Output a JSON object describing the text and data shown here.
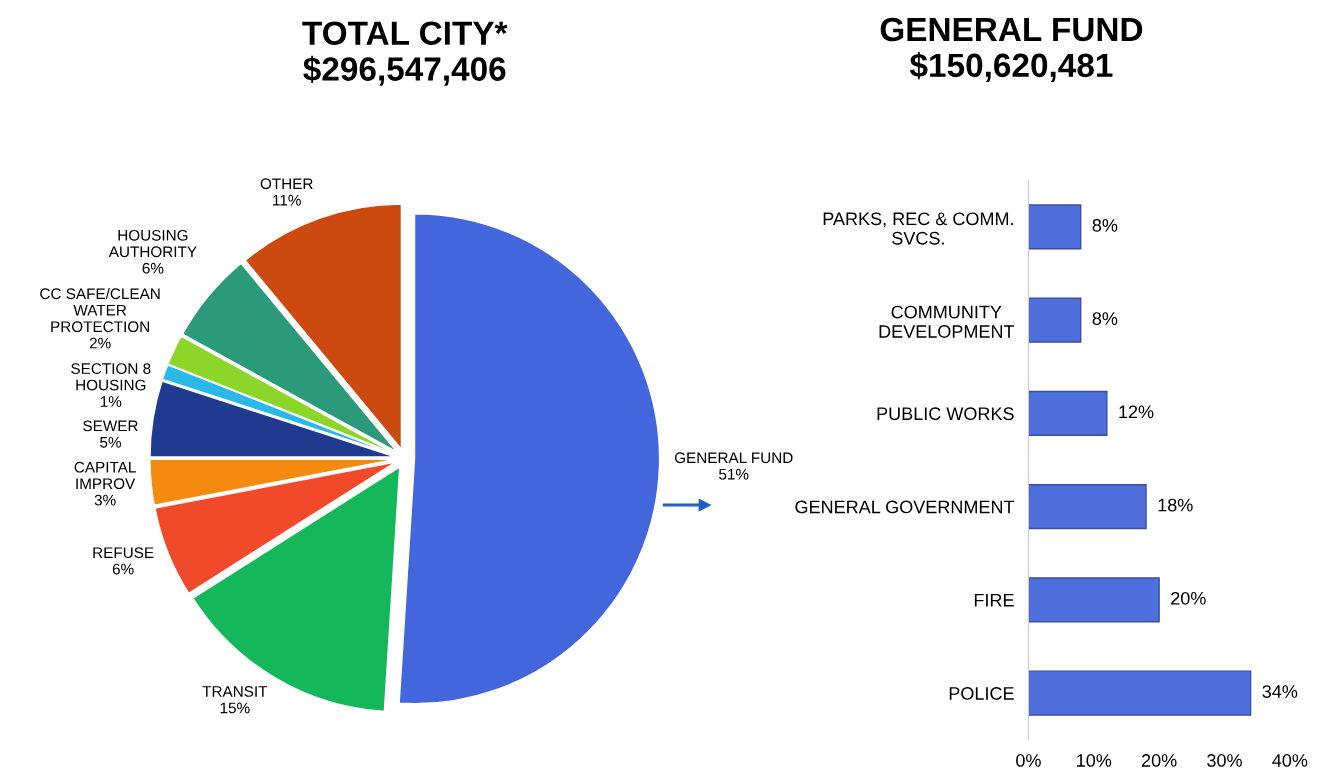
{
  "chart_data": [
    {
      "type": "pie",
      "title": "TOTAL CITY*\n$296,547,406",
      "categories": [
        "GENERAL FUND",
        "TRANSIT",
        "REFUSE",
        "CAPITAL\nIMPROV",
        "SEWER",
        "SECTION 8\nHOUSING",
        "CC SAFE/CLEAN\nWATER\nPROTECTION",
        "HOUSING\nAUTHORITY",
        "OTHER"
      ],
      "values": [
        51,
        15,
        6,
        3,
        5,
        1,
        2,
        6,
        11
      ],
      "value_labels": [
        "51%",
        "15%",
        "6%",
        "3%",
        "5%",
        "1%",
        "2%",
        "6%",
        "11%"
      ],
      "colors": [
        "#4466dd",
        "#14b85a",
        "#f04a2a",
        "#f58a10",
        "#1f3a8f",
        "#29b8e8",
        "#8cd62a",
        "#2a9a7a",
        "#cc4a10"
      ]
    },
    {
      "type": "bar",
      "orientation": "horizontal",
      "title": "GENERAL FUND\n$150,620,481",
      "categories": [
        "PARKS, REC & COMM.\nSVCS.",
        "COMMUNITY\nDEVELOPMENT",
        "PUBLIC WORKS",
        "GENERAL GOVERNMENT",
        "FIRE",
        "POLICE"
      ],
      "values": [
        8,
        8,
        12,
        18,
        20,
        34
      ],
      "value_labels": [
        "8%",
        "8%",
        "12%",
        "18%",
        "20%",
        "34%"
      ],
      "color": "#4f6fdc",
      "xlim": [
        0,
        40
      ],
      "xticks": [
        {
          "value": 0,
          "label": "0%"
        },
        {
          "value": 10,
          "label": "10%"
        },
        {
          "value": 20,
          "label": "20%"
        },
        {
          "value": 30,
          "label": "30%"
        },
        {
          "value": 40,
          "label": "40%"
        }
      ]
    }
  ]
}
